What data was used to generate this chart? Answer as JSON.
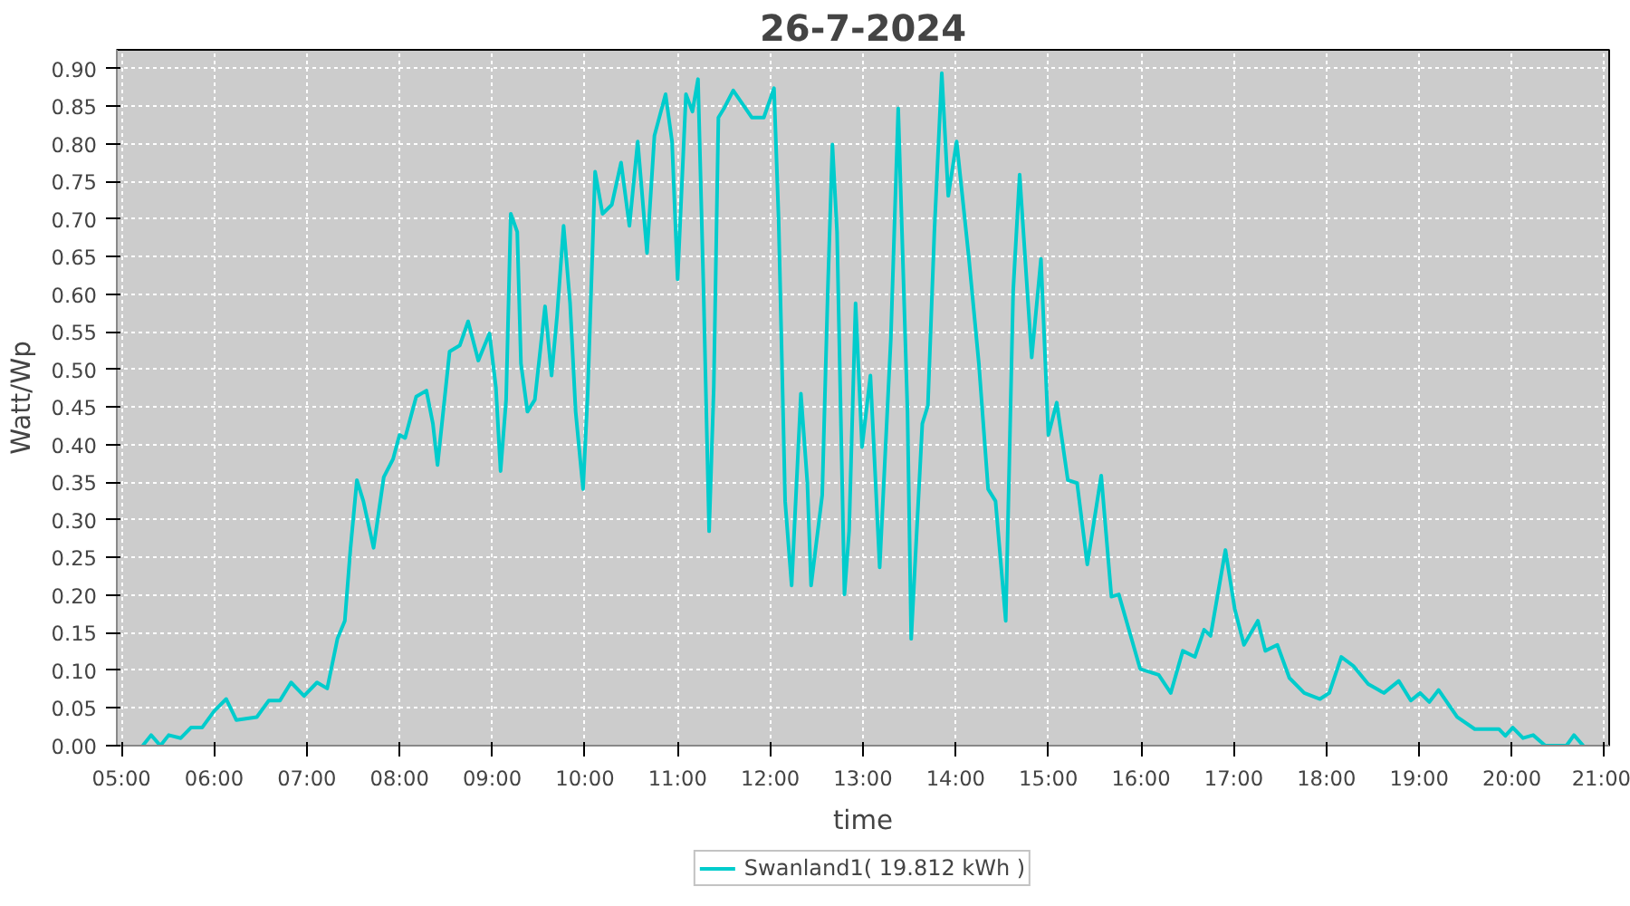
{
  "chart_data": {
    "type": "line",
    "title": "26-7-2024",
    "xlabel": "time",
    "ylabel": "Watt/Wp",
    "xlim": [
      4.95,
      21.05
    ],
    "ylim": [
      0,
      0.925
    ],
    "xticks": [
      {
        "value": 5,
        "label": "05:00"
      },
      {
        "value": 6,
        "label": "06:00"
      },
      {
        "value": 7,
        "label": "07:00"
      },
      {
        "value": 8,
        "label": "08:00"
      },
      {
        "value": 9,
        "label": "09:00"
      },
      {
        "value": 10,
        "label": "10:00"
      },
      {
        "value": 11,
        "label": "11:00"
      },
      {
        "value": 12,
        "label": "12:00"
      },
      {
        "value": 13,
        "label": "13:00"
      },
      {
        "value": 14,
        "label": "14:00"
      },
      {
        "value": 15,
        "label": "15:00"
      },
      {
        "value": 16,
        "label": "16:00"
      },
      {
        "value": 17,
        "label": "17:00"
      },
      {
        "value": 18,
        "label": "18:00"
      },
      {
        "value": 19,
        "label": "19:00"
      },
      {
        "value": 20,
        "label": "20:00"
      },
      {
        "value": 21,
        "label": "21:00"
      }
    ],
    "yticks": [
      {
        "value": 0,
        "label": "0.00"
      },
      {
        "value": 0.05,
        "label": "0.05"
      },
      {
        "value": 0.1,
        "label": "0.10"
      },
      {
        "value": 0.15,
        "label": "0.15"
      },
      {
        "value": 0.2,
        "label": "0.20"
      },
      {
        "value": 0.25,
        "label": "0.25"
      },
      {
        "value": 0.3,
        "label": "0.30"
      },
      {
        "value": 0.35,
        "label": "0.35"
      },
      {
        "value": 0.4,
        "label": "0.40"
      },
      {
        "value": 0.45,
        "label": "0.45"
      },
      {
        "value": 0.5,
        "label": "0.50"
      },
      {
        "value": 0.55,
        "label": "0.55"
      },
      {
        "value": 0.6,
        "label": "0.60"
      },
      {
        "value": 0.65,
        "label": "0.65"
      },
      {
        "value": 0.7,
        "label": "0.70"
      },
      {
        "value": 0.75,
        "label": "0.75"
      },
      {
        "value": 0.8,
        "label": "0.80"
      },
      {
        "value": 0.85,
        "label": "0.85"
      },
      {
        "value": 0.9,
        "label": "0.90"
      }
    ],
    "grid": true,
    "legend": "bottom",
    "line_style": "solid",
    "marker": "none",
    "series": [
      {
        "name": "Swanland1( 19.812 kWh )",
        "color": "#00cccc",
        "x": [
          5.23,
          5.32,
          5.42,
          5.51,
          5.64,
          5.75,
          5.87,
          6.0,
          6.13,
          6.24,
          6.46,
          6.59,
          6.71,
          6.83,
          6.97,
          7.11,
          7.22,
          7.33,
          7.41,
          7.47,
          7.54,
          7.61,
          7.72,
          7.83,
          7.93,
          8.0,
          8.06,
          8.18,
          8.29,
          8.36,
          8.41,
          8.54,
          8.65,
          8.74,
          8.85,
          8.97,
          9.04,
          9.09,
          9.15,
          9.2,
          9.27,
          9.31,
          9.38,
          9.46,
          9.57,
          9.64,
          9.7,
          9.77,
          9.84,
          9.9,
          9.98,
          10.03,
          10.11,
          10.19,
          10.29,
          10.39,
          10.48,
          10.57,
          10.67,
          10.75,
          10.87,
          10.94,
          11.0,
          11.09,
          11.16,
          11.22,
          11.28,
          11.34,
          11.39,
          11.44,
          11.5,
          11.6,
          11.8,
          11.93,
          12.04,
          12.09,
          12.16,
          12.23,
          12.33,
          12.4,
          12.44,
          12.56,
          12.62,
          12.67,
          12.72,
          12.8,
          12.85,
          12.92,
          12.99,
          13.08,
          13.13,
          13.18,
          13.3,
          13.38,
          13.48,
          13.52,
          13.64,
          13.7,
          13.77,
          13.85,
          13.92,
          14.01,
          14.14,
          14.25,
          14.35,
          14.43,
          14.54,
          14.62,
          14.69,
          14.82,
          14.92,
          15.0,
          15.09,
          15.21,
          15.31,
          15.42,
          15.57,
          15.68,
          15.76,
          15.99,
          16.19,
          16.32,
          16.45,
          16.58,
          16.68,
          16.75,
          16.91,
          17.01,
          17.11,
          17.26,
          17.34,
          17.47,
          17.6,
          17.76,
          17.93,
          18.03,
          18.16,
          18.29,
          18.45,
          18.62,
          18.78,
          18.91,
          19.01,
          19.11,
          19.21,
          19.41,
          19.6,
          19.86,
          19.93,
          20.01,
          20.12,
          20.23,
          20.36,
          20.59,
          20.67,
          20.77
        ],
        "values": [
          0.0,
          0.014,
          0.0,
          0.014,
          0.01,
          0.024,
          0.024,
          0.046,
          0.062,
          0.034,
          0.038,
          0.06,
          0.06,
          0.084,
          0.066,
          0.084,
          0.076,
          0.142,
          0.166,
          0.261,
          0.353,
          0.325,
          0.263,
          0.357,
          0.381,
          0.413,
          0.409,
          0.464,
          0.472,
          0.428,
          0.373,
          0.524,
          0.532,
          0.564,
          0.512,
          0.548,
          0.476,
          0.365,
          0.46,
          0.707,
          0.683,
          0.508,
          0.444,
          0.46,
          0.584,
          0.492,
          0.572,
          0.691,
          0.588,
          0.444,
          0.341,
          0.468,
          0.763,
          0.707,
          0.719,
          0.775,
          0.691,
          0.803,
          0.655,
          0.811,
          0.866,
          0.803,
          0.62,
          0.866,
          0.843,
          0.886,
          0.604,
          0.285,
          0.476,
          0.835,
          0.847,
          0.871,
          0.835,
          0.835,
          0.874,
          0.699,
          0.325,
          0.213,
          0.468,
          0.349,
          0.213,
          0.333,
          0.604,
          0.799,
          0.683,
          0.201,
          0.285,
          0.588,
          0.397,
          0.492,
          0.365,
          0.237,
          0.54,
          0.847,
          0.444,
          0.142,
          0.428,
          0.452,
          0.683,
          0.894,
          0.731,
          0.803,
          0.651,
          0.508,
          0.341,
          0.325,
          0.166,
          0.604,
          0.759,
          0.516,
          0.647,
          0.413,
          0.456,
          0.353,
          0.349,
          0.241,
          0.359,
          0.198,
          0.201,
          0.102,
          0.094,
          0.07,
          0.126,
          0.118,
          0.154,
          0.146,
          0.26,
          0.182,
          0.134,
          0.166,
          0.126,
          0.134,
          0.09,
          0.07,
          0.062,
          0.07,
          0.118,
          0.106,
          0.082,
          0.07,
          0.086,
          0.06,
          0.07,
          0.058,
          0.074,
          0.038,
          0.022,
          0.022,
          0.013,
          0.024,
          0.01,
          0.014,
          0.0,
          0.0,
          0.014,
          0.0
        ]
      }
    ]
  }
}
